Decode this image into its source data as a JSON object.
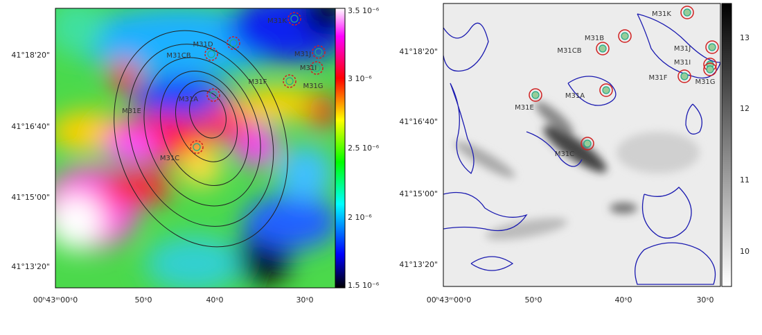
{
  "panels": [
    {
      "y_labels": [
        "41°18'20\"",
        "41°16'40\"",
        "41°15'00\"",
        "41°13'20\""
      ],
      "x_labels": [
        "00ʰ43ᵐ00ˢ0",
        "50ˢ0",
        "40ˢ0",
        "30ˢ0"
      ],
      "colorbar_labels": [
        "3.5 10⁻⁶",
        "3 10⁻⁶",
        "2.5 10⁻⁶",
        "2 10⁻⁶",
        "1.5 10⁻⁶"
      ],
      "sources": [
        "M31K",
        "M31D",
        "M31CB",
        "M31J",
        "M31I",
        "M31F",
        "M31G",
        "M31A",
        "M31E",
        "M31C"
      ]
    },
    {
      "y_labels": [
        "41°18'20\"",
        "41°16'40\"",
        "41°15'00\"",
        "41°13'20\""
      ],
      "x_labels": [
        "00ʰ43ᵐ00ˢ0",
        "50ˢ0",
        "40ˢ0",
        "30ˢ0"
      ],
      "colorbar_labels": [
        "13",
        "12",
        "11",
        "10"
      ],
      "sources": [
        "M31K",
        "M31B",
        "M31CB",
        "M31J",
        "M31I",
        "M31F",
        "M31G",
        "M31A",
        "M31E",
        "M31C"
      ]
    }
  ]
}
